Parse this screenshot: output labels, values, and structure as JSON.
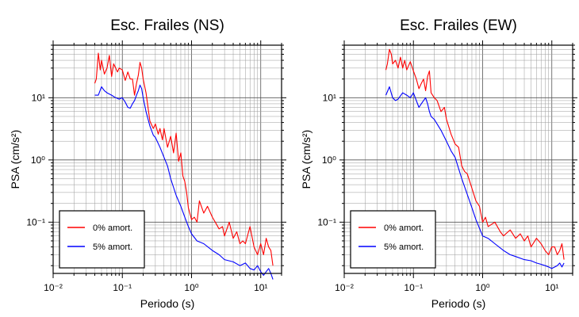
{
  "chart_data": [
    {
      "type": "line",
      "title": "Esc. Frailes (NS)",
      "xlabel": "Periodo (s)",
      "ylabel": "PSA (cm/s²)",
      "xscale": "log",
      "yscale": "log",
      "xlim": [
        0.01,
        20
      ],
      "ylim": [
        0.015,
        70
      ],
      "x_ticks": [
        "10⁻²",
        "10⁻¹",
        "10⁰",
        "10¹"
      ],
      "y_ticks": [
        "10⁻¹",
        "10⁰",
        "10¹"
      ],
      "grid": true,
      "legend_position": "bottom-left",
      "series": [
        {
          "name": "0% amort.",
          "color": "#ff0000",
          "x": [
            0.04,
            0.042,
            0.045,
            0.048,
            0.05,
            0.055,
            0.06,
            0.065,
            0.07,
            0.075,
            0.08,
            0.085,
            0.09,
            0.1,
            0.11,
            0.12,
            0.13,
            0.14,
            0.15,
            0.16,
            0.17,
            0.18,
            0.19,
            0.2,
            0.22,
            0.25,
            0.28,
            0.3,
            0.33,
            0.35,
            0.38,
            0.4,
            0.45,
            0.5,
            0.55,
            0.6,
            0.65,
            0.7,
            0.75,
            0.8,
            0.85,
            0.9,
            1.0,
            1.1,
            1.2,
            1.3,
            1.5,
            1.7,
            2.0,
            2.2,
            2.5,
            2.8,
            3.0,
            3.5,
            4.0,
            4.5,
            5.0,
            5.5,
            6.0,
            7.0,
            8.0,
            9.0,
            10.0,
            11.0,
            12.0,
            13.0,
            14.0,
            15.0
          ],
          "y": [
            17,
            20,
            52,
            28,
            40,
            24,
            30,
            48,
            22,
            35,
            30,
            26,
            30,
            28,
            19,
            26,
            20,
            20,
            11,
            17,
            23,
            37,
            30,
            20,
            12,
            4.2,
            3.2,
            3.8,
            2.6,
            3.2,
            2.1,
            3.2,
            1.6,
            2.4,
            1.3,
            2.7,
            0.95,
            1.3,
            0.55,
            0.45,
            0.3,
            0.17,
            0.11,
            0.12,
            0.1,
            0.22,
            0.14,
            0.18,
            0.12,
            0.1,
            0.078,
            0.085,
            0.06,
            0.1,
            0.055,
            0.07,
            0.045,
            0.05,
            0.045,
            0.085,
            0.04,
            0.03,
            0.045,
            0.03,
            0.055,
            0.04,
            0.035,
            0.02
          ]
        },
        {
          "name": "5% amort.",
          "color": "#0000ff",
          "x": [
            0.04,
            0.045,
            0.05,
            0.055,
            0.06,
            0.07,
            0.08,
            0.09,
            0.1,
            0.11,
            0.12,
            0.13,
            0.14,
            0.15,
            0.16,
            0.17,
            0.18,
            0.19,
            0.2,
            0.22,
            0.25,
            0.28,
            0.3,
            0.35,
            0.4,
            0.45,
            0.5,
            0.6,
            0.7,
            0.8,
            0.9,
            1.0,
            1.2,
            1.5,
            2.0,
            2.5,
            3.0,
            4.0,
            5.0,
            6.0,
            7.0,
            8.0,
            9.0,
            10.0,
            11.0,
            12.0,
            13.0,
            14.0,
            15.0
          ],
          "y": [
            11,
            11,
            15,
            13,
            12,
            11,
            10,
            9.5,
            10,
            8.5,
            7,
            6.8,
            8,
            9,
            11,
            13,
            16,
            14,
            10,
            6,
            3.5,
            2.5,
            2.3,
            1.6,
            1.1,
            0.8,
            0.5,
            0.27,
            0.18,
            0.12,
            0.085,
            0.065,
            0.05,
            0.045,
            0.035,
            0.03,
            0.025,
            0.023,
            0.02,
            0.022,
            0.018,
            0.017,
            0.02,
            0.016,
            0.014,
            0.016,
            0.018,
            0.015,
            0.012
          ]
        }
      ]
    },
    {
      "type": "line",
      "title": "Esc. Frailes (EW)",
      "xlabel": "Periodo (s)",
      "ylabel": "PSA (cm/s²)",
      "xscale": "log",
      "yscale": "log",
      "xlim": [
        0.01,
        20
      ],
      "ylim": [
        0.015,
        70
      ],
      "x_ticks": [
        "10⁻²",
        "10⁻¹",
        "10⁰",
        "10¹"
      ],
      "y_ticks": [
        "10⁻¹",
        "10⁰",
        "10¹"
      ],
      "grid": true,
      "legend_position": "bottom-left",
      "series": [
        {
          "name": "0% amort.",
          "color": "#ff0000",
          "x": [
            0.04,
            0.042,
            0.045,
            0.048,
            0.05,
            0.055,
            0.06,
            0.065,
            0.07,
            0.075,
            0.08,
            0.09,
            0.1,
            0.11,
            0.12,
            0.13,
            0.14,
            0.15,
            0.16,
            0.17,
            0.18,
            0.2,
            0.22,
            0.25,
            0.28,
            0.3,
            0.35,
            0.4,
            0.45,
            0.5,
            0.55,
            0.6,
            0.7,
            0.8,
            0.9,
            1.0,
            1.1,
            1.2,
            1.5,
            1.8,
            2.0,
            2.5,
            3.0,
            3.5,
            4.0,
            4.5,
            5.0,
            6.0,
            7.0,
            8.0,
            9.0,
            10.0,
            11.0,
            12.0,
            13.0,
            14.0,
            15.0
          ],
          "y": [
            28,
            35,
            60,
            50,
            35,
            40,
            30,
            45,
            30,
            40,
            28,
            38,
            27,
            20,
            14,
            17,
            20,
            13,
            22,
            27,
            12,
            10,
            9,
            6,
            7,
            4.5,
            2.6,
            1.8,
            1.6,
            0.8,
            0.65,
            0.6,
            0.35,
            0.22,
            0.18,
            0.1,
            0.12,
            0.085,
            0.1,
            0.07,
            0.06,
            0.075,
            0.055,
            0.065,
            0.05,
            0.06,
            0.04,
            0.055,
            0.045,
            0.035,
            0.03,
            0.04,
            0.04,
            0.03,
            0.035,
            0.045,
            0.025
          ]
        },
        {
          "name": "5% amort.",
          "color": "#0000ff",
          "x": [
            0.04,
            0.045,
            0.05,
            0.055,
            0.06,
            0.07,
            0.08,
            0.09,
            0.1,
            0.11,
            0.12,
            0.13,
            0.14,
            0.15,
            0.16,
            0.17,
            0.18,
            0.2,
            0.25,
            0.3,
            0.35,
            0.4,
            0.5,
            0.6,
            0.7,
            0.8,
            0.9,
            1.0,
            1.2,
            1.5,
            2.0,
            2.5,
            3.0,
            4.0,
            5.0,
            6.0,
            7.0,
            8.0,
            9.0,
            10.0,
            12.0,
            13.0,
            14.0,
            15.0
          ],
          "y": [
            11,
            15,
            10,
            9,
            9.5,
            12,
            11,
            10,
            12,
            9,
            7,
            8,
            9,
            10,
            8,
            6,
            5,
            4.5,
            3,
            2,
            1.4,
            1.1,
            0.5,
            0.28,
            0.17,
            0.11,
            0.08,
            0.06,
            0.055,
            0.045,
            0.035,
            0.03,
            0.028,
            0.025,
            0.024,
            0.022,
            0.021,
            0.02,
            0.019,
            0.018,
            0.02,
            0.022,
            0.019,
            0.022
          ]
        }
      ]
    }
  ]
}
